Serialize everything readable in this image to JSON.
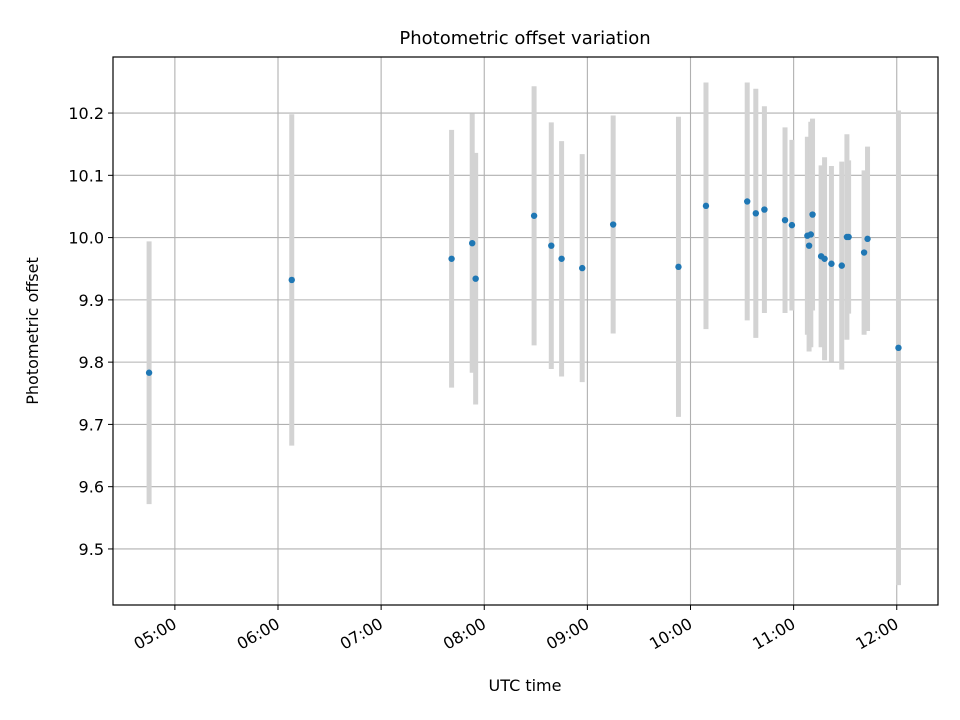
{
  "chart_data": {
    "type": "scatter",
    "title": "Photometric offset variation",
    "xlabel": "UTC time",
    "ylabel": "Photometric offset",
    "xlim": [
      "04:24",
      "12:24"
    ],
    "ylim": [
      9.41,
      10.29
    ],
    "x_ticks": [
      "05:00",
      "06:00",
      "07:00",
      "08:00",
      "09:00",
      "10:00",
      "11:00",
      "12:00"
    ],
    "y_ticks": [
      "9.5",
      "9.6",
      "9.7",
      "9.8",
      "9.9",
      "10.0",
      "10.1",
      "10.2"
    ],
    "grid": true,
    "errorbar_color": "#d3d3d3",
    "point_color": "#1f77b4",
    "points": [
      {
        "x": "04:45",
        "y": 9.783,
        "err": 0.211
      },
      {
        "x": "06:08",
        "y": 9.932,
        "err": 0.266
      },
      {
        "x": "07:41",
        "y": 9.966,
        "err": 0.207
      },
      {
        "x": "07:53",
        "y": 9.991,
        "err": 0.208
      },
      {
        "x": "07:55",
        "y": 9.934,
        "err": 0.202
      },
      {
        "x": "08:29",
        "y": 10.035,
        "err": 0.208
      },
      {
        "x": "08:39",
        "y": 9.987,
        "err": 0.198
      },
      {
        "x": "08:45",
        "y": 9.966,
        "err": 0.189
      },
      {
        "x": "08:57",
        "y": 9.951,
        "err": 0.183
      },
      {
        "x": "09:15",
        "y": 10.021,
        "err": 0.175
      },
      {
        "x": "09:53",
        "y": 9.953,
        "err": 0.241
      },
      {
        "x": "10:09",
        "y": 10.051,
        "err": 0.198
      },
      {
        "x": "10:33",
        "y": 10.058,
        "err": 0.191
      },
      {
        "x": "10:38",
        "y": 10.039,
        "err": 0.2
      },
      {
        "x": "10:43",
        "y": 10.045,
        "err": 0.166
      },
      {
        "x": "10:55",
        "y": 10.028,
        "err": 0.149
      },
      {
        "x": "10:59",
        "y": 10.02,
        "err": 0.137
      },
      {
        "x": "11:08",
        "y": 10.003,
        "err": 0.159
      },
      {
        "x": "11:09",
        "y": 9.987,
        "err": 0.17
      },
      {
        "x": "11:10",
        "y": 10.005,
        "err": 0.181
      },
      {
        "x": "11:11",
        "y": 10.037,
        "err": 0.154
      },
      {
        "x": "11:16",
        "y": 9.97,
        "err": 0.146
      },
      {
        "x": "11:18",
        "y": 9.966,
        "err": 0.163
      },
      {
        "x": "11:22",
        "y": 9.958,
        "err": 0.157
      },
      {
        "x": "11:28",
        "y": 9.955,
        "err": 0.167
      },
      {
        "x": "11:31",
        "y": 10.001,
        "err": 0.165
      },
      {
        "x": "11:32",
        "y": 10.001,
        "err": 0.123
      },
      {
        "x": "11:41",
        "y": 9.976,
        "err": 0.132
      },
      {
        "x": "11:43",
        "y": 9.998,
        "err": 0.148
      },
      {
        "x": "12:01",
        "y": 9.823,
        "err": 0.381
      }
    ]
  }
}
